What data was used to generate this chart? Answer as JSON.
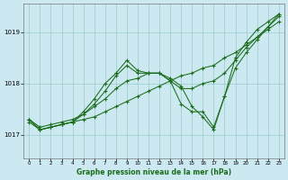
{
  "title": "Graphe pression niveau de la mer (hPa)",
  "bg_color": "#cce8f0",
  "plot_bg_color": "#cce8f0",
  "grid_color": "#99cccc",
  "line_color": "#1a6e1a",
  "xlim": [
    -0.5,
    23.5
  ],
  "ylim": [
    1016.55,
    1019.55
  ],
  "yticks": [
    1017,
    1018,
    1019
  ],
  "xticks": [
    0,
    1,
    2,
    3,
    4,
    5,
    6,
    7,
    8,
    9,
    10,
    11,
    12,
    13,
    14,
    15,
    16,
    17,
    18,
    19,
    20,
    21,
    22,
    23
  ],
  "series": [
    {
      "x": [
        0,
        1,
        2,
        3,
        4,
        5,
        6,
        7,
        8,
        9,
        10,
        11,
        12,
        13,
        14,
        15,
        16,
        17,
        18,
        19,
        20,
        21,
        22,
        23
      ],
      "y": [
        1017.25,
        1017.1,
        1017.15,
        1017.2,
        1017.25,
        1017.3,
        1017.35,
        1017.45,
        1017.55,
        1017.65,
        1017.75,
        1017.85,
        1017.95,
        1018.05,
        1018.15,
        1018.2,
        1018.3,
        1018.35,
        1018.5,
        1018.6,
        1018.75,
        1018.9,
        1019.05,
        1019.2
      ]
    },
    {
      "x": [
        0,
        1,
        2,
        3,
        4,
        5,
        6,
        7,
        8,
        9,
        10,
        11,
        12,
        13,
        14,
        15,
        16,
        17,
        18,
        19,
        20,
        21,
        22,
        23
      ],
      "y": [
        1017.3,
        1017.1,
        1017.15,
        1017.2,
        1017.25,
        1017.4,
        1017.6,
        1017.85,
        1018.15,
        1018.35,
        1018.2,
        1018.2,
        1018.2,
        1018.05,
        1017.9,
        1017.9,
        1018.0,
        1018.05,
        1018.2,
        1018.45,
        1018.7,
        1018.9,
        1019.1,
        1019.3
      ]
    },
    {
      "x": [
        0,
        1,
        2,
        3,
        4,
        5,
        6,
        7,
        8,
        9,
        10,
        11,
        12,
        13,
        14,
        15,
        16,
        17,
        18,
        19,
        20,
        21,
        22,
        23
      ],
      "y": [
        1017.3,
        1017.1,
        1017.15,
        1017.2,
        1017.25,
        1017.45,
        1017.7,
        1018.0,
        1018.2,
        1018.45,
        1018.25,
        1018.2,
        1018.2,
        1018.05,
        1017.6,
        1017.45,
        1017.45,
        1017.15,
        1017.75,
        1018.5,
        1018.8,
        1019.05,
        1019.2,
        1019.35
      ]
    },
    {
      "x": [
        0,
        1,
        2,
        3,
        4,
        5,
        6,
        7,
        8,
        9,
        10,
        11,
        12,
        13,
        14,
        15,
        16,
        17,
        18,
        19,
        20,
        21,
        22,
        23
      ],
      "y": [
        1017.3,
        1017.15,
        1017.2,
        1017.25,
        1017.3,
        1017.4,
        1017.55,
        1017.7,
        1017.9,
        1018.05,
        1018.1,
        1018.2,
        1018.2,
        1018.1,
        1017.95,
        1017.55,
        1017.35,
        1017.1,
        1017.75,
        1018.3,
        1018.6,
        1018.85,
        1019.1,
        1019.35
      ]
    }
  ]
}
